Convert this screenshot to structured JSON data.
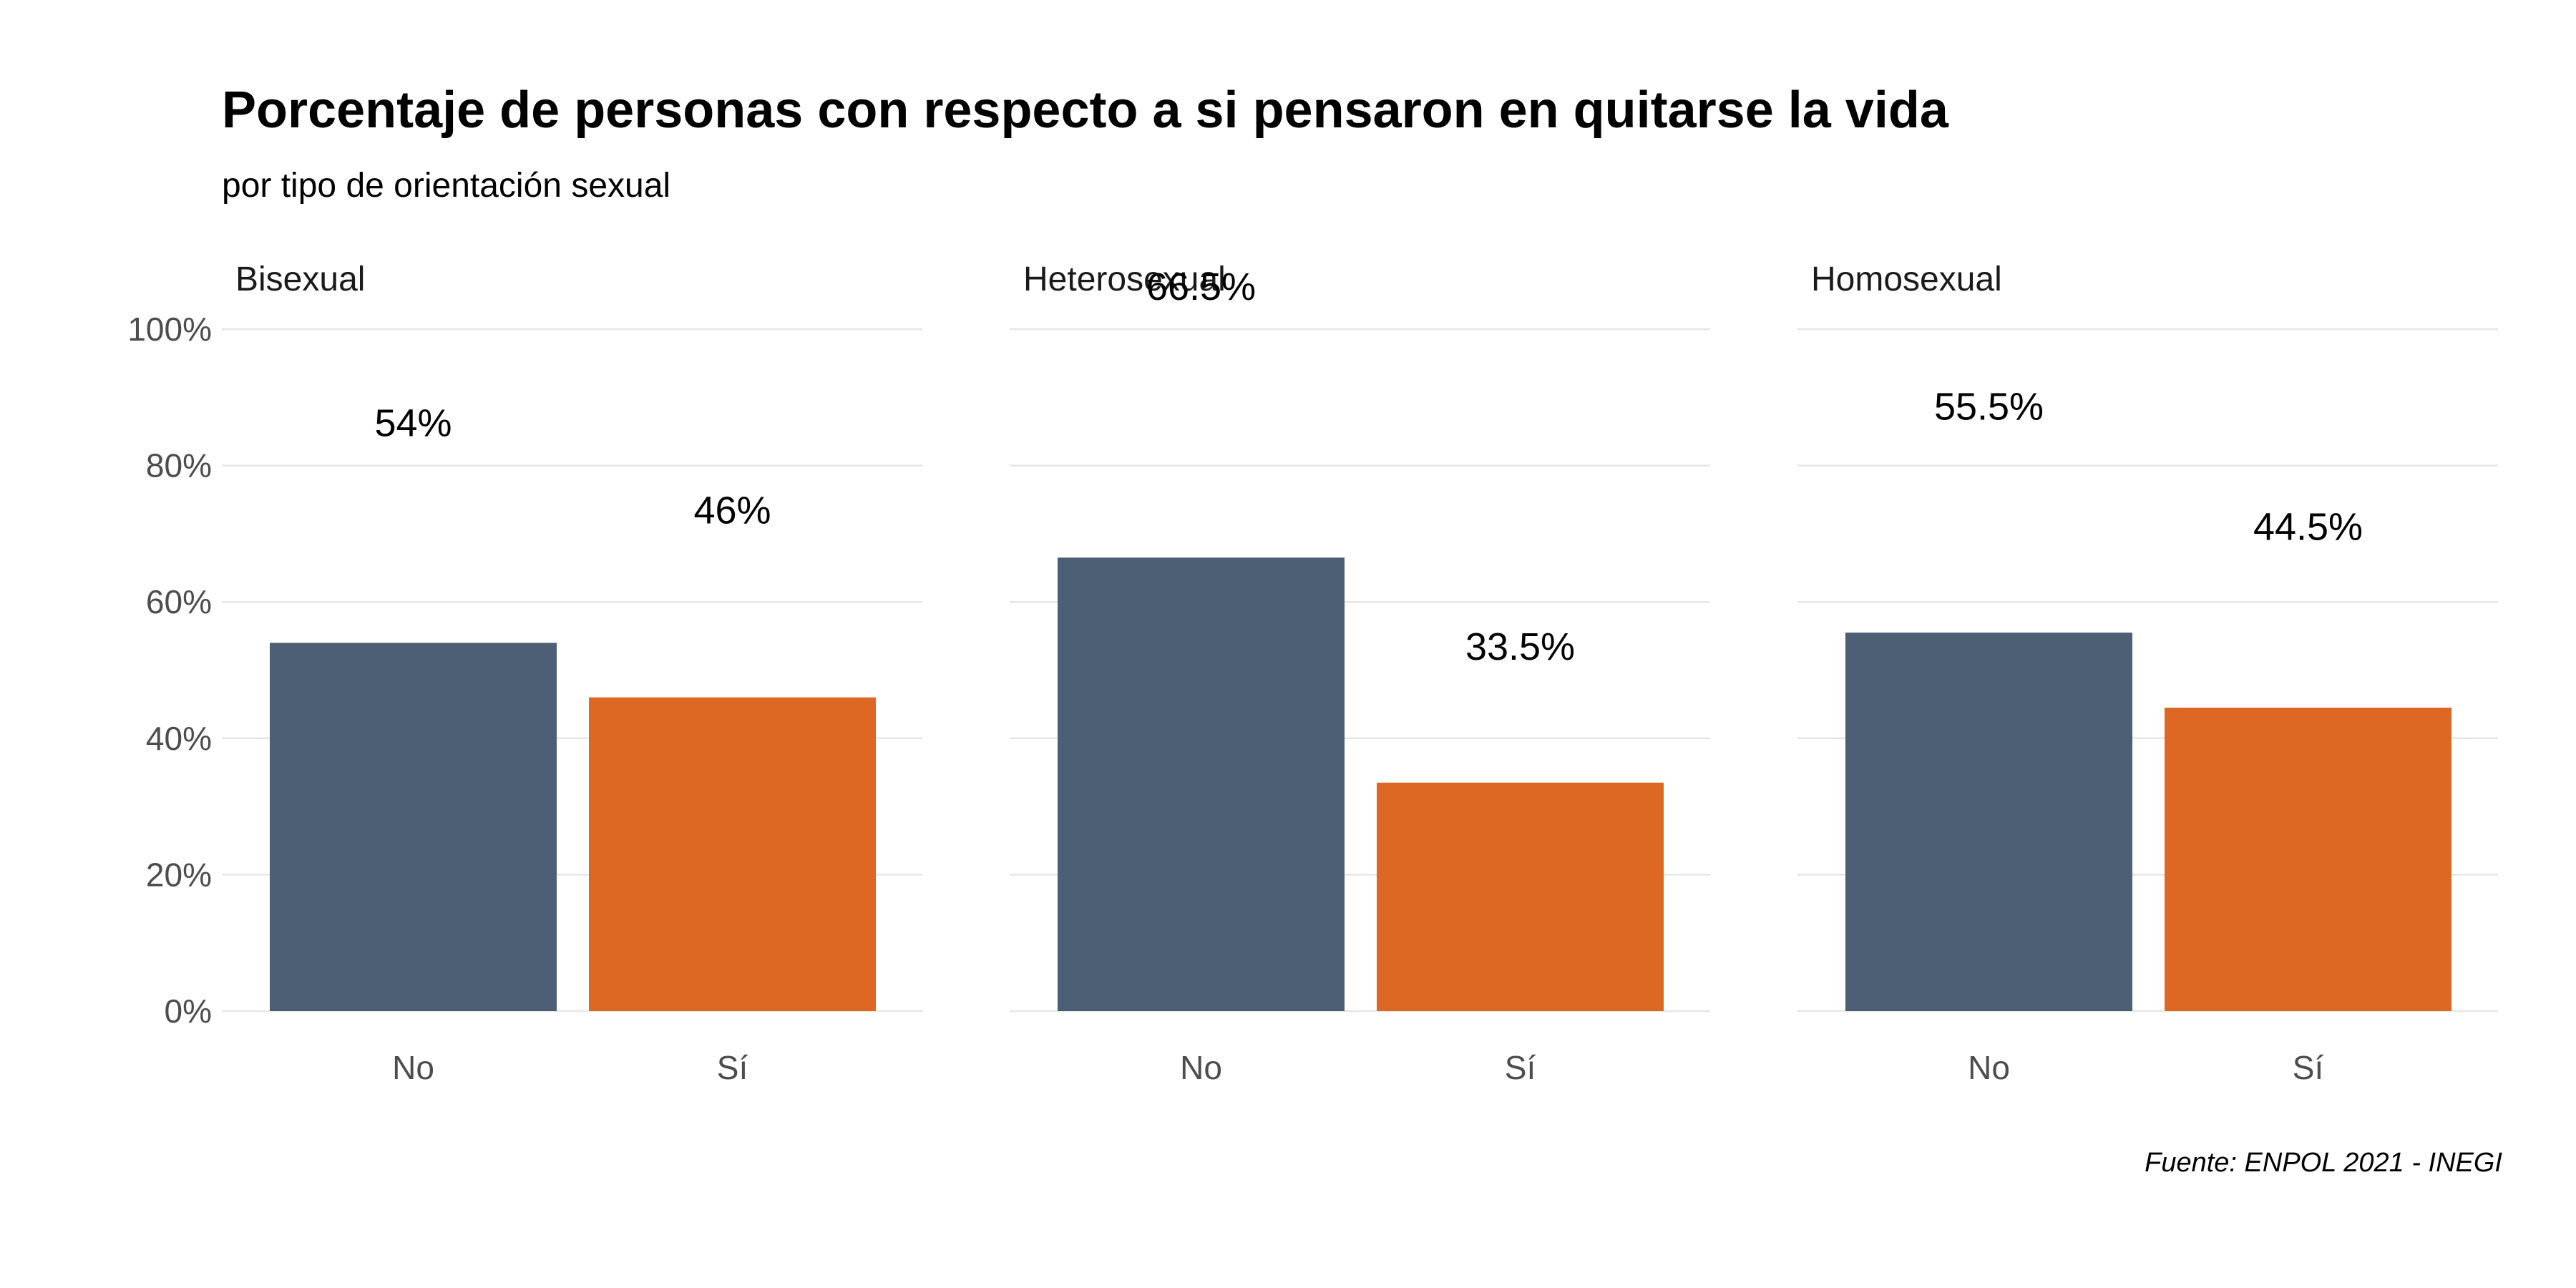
{
  "chart_data": {
    "type": "bar",
    "title": "Porcentaje de personas con respecto a si pensaron en quitarse la vida",
    "subtitle": "por tipo de orientación sexual",
    "caption": "Fuente: ENPOL 2021 - INEGI",
    "categories": [
      "No",
      "Sí"
    ],
    "ylim": [
      0,
      100
    ],
    "y_ticks": [
      0,
      20,
      40,
      60,
      80,
      100
    ],
    "y_tick_labels": [
      "0%",
      "20%",
      "40%",
      "60%",
      "80%",
      "100%"
    ],
    "grid": true,
    "legend": "none",
    "colors": {
      "No": "#4d5f75",
      "Sí": "#dd6824"
    },
    "facets": [
      {
        "name": "Bisexual",
        "values": [
          54,
          46
        ],
        "labels": [
          "54%",
          "46%"
        ]
      },
      {
        "name": "Heterosexual",
        "values": [
          66.5,
          33.5
        ],
        "labels": [
          "66.5%",
          "33.5%"
        ]
      },
      {
        "name": "Homosexual",
        "values": [
          55.5,
          44.5
        ],
        "labels": [
          "55.5%",
          "44.5%"
        ]
      }
    ]
  }
}
